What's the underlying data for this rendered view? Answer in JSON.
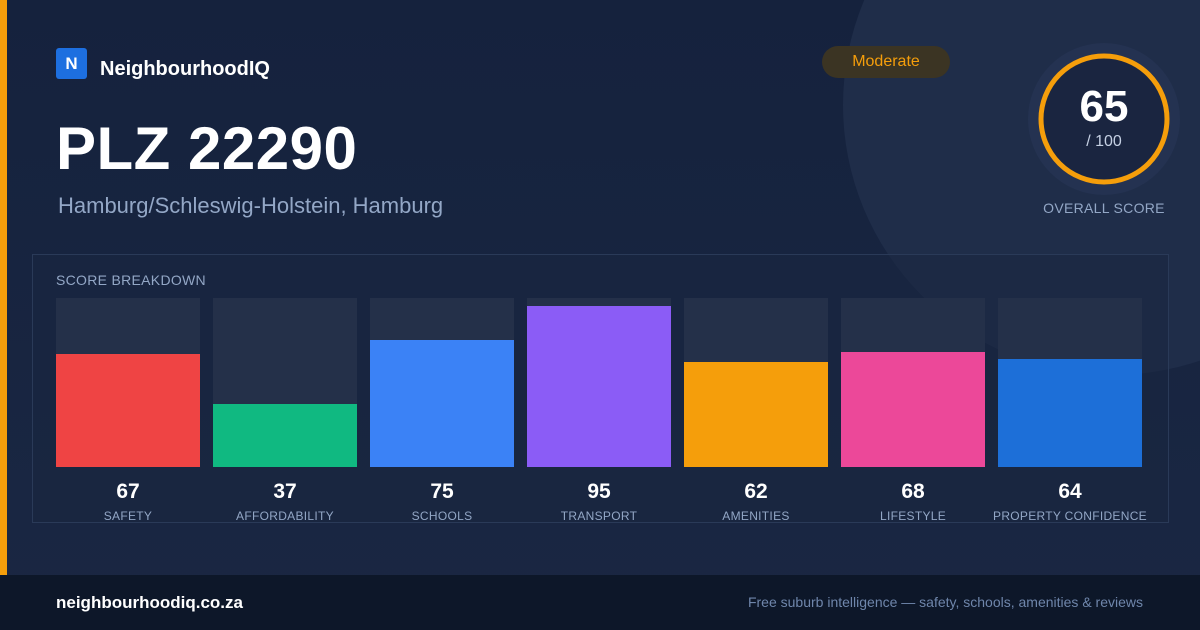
{
  "brand": {
    "logo_letter": "N",
    "name": "NeighbourhoodIQ"
  },
  "header": {
    "title": "PLZ 22290",
    "location": "Hamburg/Schleswig-Holstein, Hamburg",
    "rating_badge": "Moderate"
  },
  "overall": {
    "score": "65",
    "max": "/ 100",
    "score_fraction": 0.65,
    "label": "OVERALL SCORE"
  },
  "breakdown": {
    "title": "SCORE BREAKDOWN",
    "items": [
      {
        "label": "SAFETY",
        "value": "67",
        "color": "#ef4444"
      },
      {
        "label": "AFFORDABILITY",
        "value": "37",
        "color": "#10b981"
      },
      {
        "label": "SCHOOLS",
        "value": "75",
        "color": "#3b82f6"
      },
      {
        "label": "TRANSPORT",
        "value": "95",
        "color": "#8b5cf6"
      },
      {
        "label": "AMENITIES",
        "value": "62",
        "color": "#f59e0b"
      },
      {
        "label": "LIFESTYLE",
        "value": "68",
        "color": "#ec4899"
      },
      {
        "label": "PROPERTY CONFIDENCE",
        "value": "64",
        "color": "#1d6fd8"
      }
    ]
  },
  "footer": {
    "url": "neighbourhoodiq.co.za",
    "tagline": "Free suburb intelligence — safety, schools, amenities & reviews"
  },
  "colors": {
    "accent": "#f59e0b",
    "brand": "#1d6fe0",
    "background": "#15223d"
  }
}
